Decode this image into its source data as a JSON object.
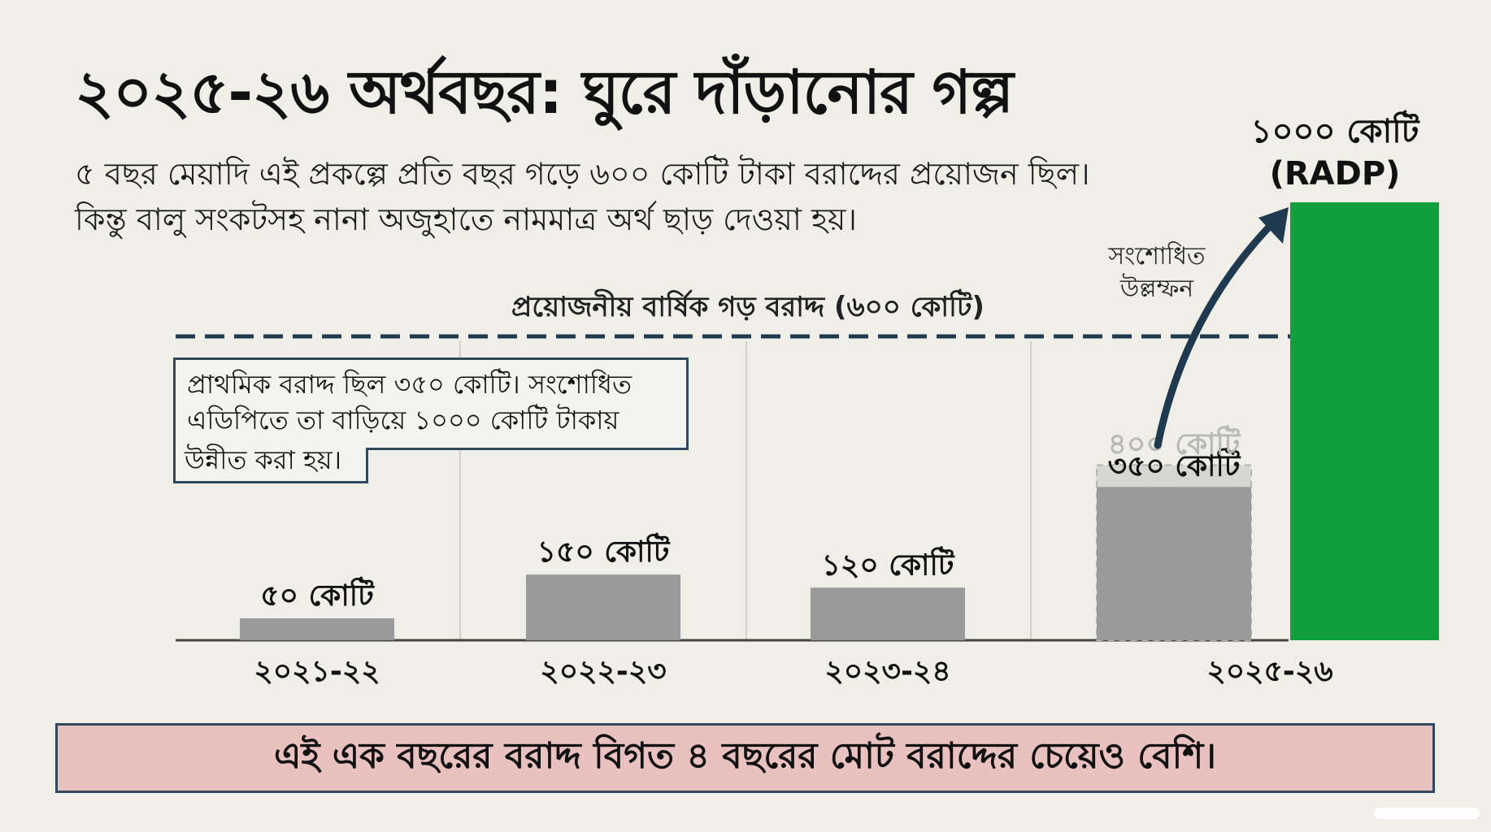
{
  "title": "২০২৫-২৬ অর্থবছর: ঘুরে দাঁড়ানোর গল্প",
  "subtitle_lines": [
    "৫ বছর মেয়াদি এই প্রকল্পে প্রতি বছর গড়ে ৬০০ কোটি টাকা বরাদ্দের প্রয়োজন ছিল।",
    "কিন্তু বালু সংকটসহ নানা অজুহাতে নামমাত্র অর্থ ছাড় দেওয়া হয়।"
  ],
  "callout_lines": [
    "প্রাথমিক বরাদ্দ ছিল ৩৫০ কোটি। সংশোধিত",
    "এডিপিতে তা বাড়িয়ে ১০০০ কোটি টাকায়",
    "উন্নীত করা হয়।"
  ],
  "banner": "এই এক বছরের বরাদ্দ বিগত ৪ বছরের মোট বরাদ্দের চেয়েও বেশি।",
  "jump_label_lines": [
    "সংশোধিত",
    "উল্লম্ফন"
  ],
  "radp_label_lines": [
    "১০০০ কোটি",
    "(RADP)"
  ],
  "chart_data": {
    "type": "bar",
    "categories": [
      "২০২১-২২",
      "২০২২-২৩",
      "২০২৩-২৪",
      "২০২৫-২৬"
    ],
    "series": [
      {
        "values": [
          50,
          150,
          120,
          350
        ]
      },
      {
        "values": [
          null,
          null,
          null,
          400
        ]
      },
      {
        "values": [
          null,
          null,
          null,
          1000
        ]
      }
    ],
    "data_labels": [
      "৫০ কোটি",
      "১৫০ কোটি",
      "১২০ কোটি",
      "৩৫০ কোটি",
      "৪০০ কোটি"
    ],
    "reference_line": {
      "value": 600,
      "label": "প্রয়োজনীয় বার্ষিক গড় বরাদ্দ (৬০০ কোটি)"
    },
    "ylim": [
      0,
      1000
    ],
    "colors": {
      "base": "#9a9a9a",
      "intermediate": "#d6d6d3",
      "radp": "#12a03d",
      "reference": "#1f3a4f",
      "arrow": "#1f3a4f"
    },
    "grid": false
  }
}
